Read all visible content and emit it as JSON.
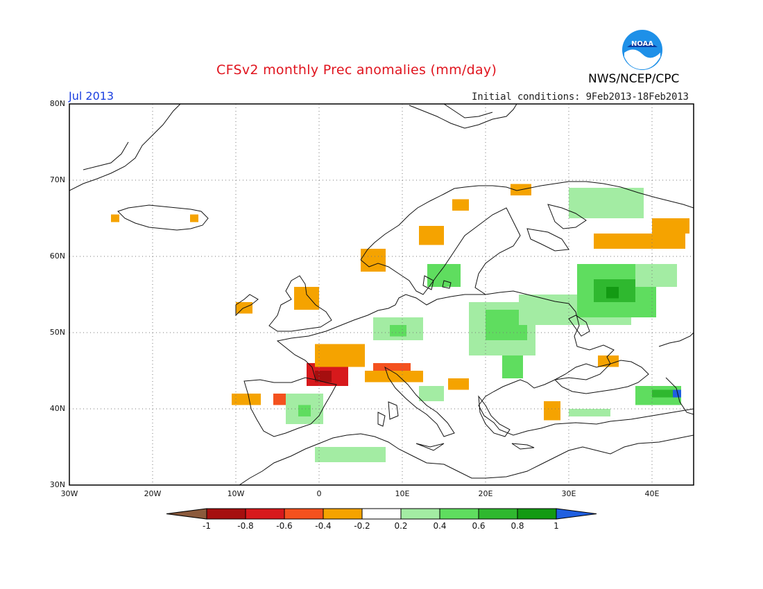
{
  "header": {
    "title": "CFSv2 monthly Prec anomalies (mm/day)",
    "month": "Jul 2013",
    "initial_conditions": "Initial conditions: 9Feb2013-18Feb2013",
    "agency": "NWS/NCEP/CPC",
    "logo_text": "NOAA"
  },
  "axes": {
    "lat_labels": [
      "80N",
      "70N",
      "60N",
      "50N",
      "40N",
      "30N"
    ],
    "lon_labels": [
      "30W",
      "20W",
      "10W",
      "0",
      "10E",
      "20E",
      "30E",
      "40E"
    ]
  },
  "colorbar": {
    "tick_labels": [
      "-1",
      "-0.8",
      "-0.6",
      "-0.4",
      "-0.2",
      "0.2",
      "0.4",
      "0.6",
      "0.8",
      "1"
    ],
    "colors": {
      "lt_-1": "#8b5a3c",
      "-1_-0.8": "#a50f0f",
      "-0.8_-0.6": "#d7191c",
      "-0.6_-0.4": "#f4511e",
      "-0.4_-0.2": "#f5a300",
      "-0.2_0.2": "#ffffff",
      "0.2_0.4": "#a3eca3",
      "0.4_0.6": "#5fdd5f",
      "0.6_0.8": "#2fb82f",
      "0.8_1": "#139a13",
      "gt_1": "#1f5fe0"
    }
  },
  "map_data": {
    "lon_range": [
      -30,
      45
    ],
    "lat_range": [
      30,
      80
    ],
    "grid_step_degrees": 10,
    "anomaly_regions": [
      {
        "lon": [
          -10.5,
          -7
        ],
        "lat": [
          40.5,
          42
        ],
        "value": -0.3
      },
      {
        "lon": [
          -5.5,
          -3
        ],
        "lat": [
          40.5,
          42
        ],
        "value": -0.5
      },
      {
        "lon": [
          -1.5,
          3.5
        ],
        "lat": [
          43,
          46
        ],
        "value": -0.7
      },
      {
        "lon": [
          -0.5,
          1.5
        ],
        "lat": [
          43.5,
          45
        ],
        "value": -0.9
      },
      {
        "lon": [
          -0.5,
          5.5
        ],
        "lat": [
          45.5,
          48.5
        ],
        "value": -0.3
      },
      {
        "lon": [
          6.5,
          11
        ],
        "lat": [
          44.5,
          46
        ],
        "value": -0.6
      },
      {
        "lon": [
          5.5,
          12.5
        ],
        "lat": [
          43.5,
          45
        ],
        "value": -0.3
      },
      {
        "lon": [
          -10,
          -8
        ],
        "lat": [
          52.5,
          54
        ],
        "value": -0.3
      },
      {
        "lon": [
          -3,
          0
        ],
        "lat": [
          53,
          56
        ],
        "value": -0.3
      },
      {
        "lon": [
          5,
          8
        ],
        "lat": [
          58,
          61
        ],
        "value": -0.3
      },
      {
        "lon": [
          12,
          15
        ],
        "lat": [
          61.5,
          64
        ],
        "value": -0.3
      },
      {
        "lon": [
          16,
          18
        ],
        "lat": [
          66,
          67.5
        ],
        "value": -0.3
      },
      {
        "lon": [
          23,
          25.5
        ],
        "lat": [
          68,
          69.5
        ],
        "value": -0.3
      },
      {
        "lon": [
          33,
          44
        ],
        "lat": [
          61,
          63
        ],
        "value": -0.3
      },
      {
        "lon": [
          40,
          44.5
        ],
        "lat": [
          63,
          65
        ],
        "value": -0.3
      },
      {
        "lon": [
          27,
          29
        ],
        "lat": [
          38.5,
          41
        ],
        "value": -0.3
      },
      {
        "lon": [
          15.5,
          18
        ],
        "lat": [
          42.5,
          44
        ],
        "value": -0.3
      },
      {
        "lon": [
          33.5,
          36
        ],
        "lat": [
          45.5,
          47
        ],
        "value": -0.3
      },
      {
        "lon": [
          -25,
          -24
        ],
        "lat": [
          64.5,
          65.5
        ],
        "value": -0.3
      },
      {
        "lon": [
          -15.5,
          -14.5
        ],
        "lat": [
          64.5,
          65.5
        ],
        "value": -0.3
      },
      {
        "lon": [
          -0.5,
          8
        ],
        "lat": [
          33,
          35
        ],
        "value": 0.3
      },
      {
        "lon": [
          -4,
          0.5
        ],
        "lat": [
          38,
          42
        ],
        "value": 0.3
      },
      {
        "lon": [
          -2.5,
          -1
        ],
        "lat": [
          39,
          40.5
        ],
        "value": 0.5
      },
      {
        "lon": [
          6.5,
          12.5
        ],
        "lat": [
          49,
          52
        ],
        "value": 0.3
      },
      {
        "lon": [
          8.5,
          10.5
        ],
        "lat": [
          49.5,
          51
        ],
        "value": 0.5
      },
      {
        "lon": [
          18,
          26
        ],
        "lat": [
          47,
          54
        ],
        "value": 0.3
      },
      {
        "lon": [
          20,
          25
        ],
        "lat": [
          49,
          53
        ],
        "value": 0.5
      },
      {
        "lon": [
          22,
          24.5
        ],
        "lat": [
          44,
          47
        ],
        "value": 0.4
      },
      {
        "lon": [
          24,
          37.5
        ],
        "lat": [
          51,
          55
        ],
        "value": 0.3
      },
      {
        "lon": [
          31,
          40.5
        ],
        "lat": [
          52,
          59
        ],
        "value": 0.45
      },
      {
        "lon": [
          33,
          38
        ],
        "lat": [
          54,
          57
        ],
        "value": 0.65
      },
      {
        "lon": [
          34.5,
          36
        ],
        "lat": [
          54.5,
          56
        ],
        "value": 0.85
      },
      {
        "lon": [
          38,
          43
        ],
        "lat": [
          56,
          59
        ],
        "value": 0.3
      },
      {
        "lon": [
          13,
          17
        ],
        "lat": [
          56,
          59
        ],
        "value": 0.4
      },
      {
        "lon": [
          30,
          39
        ],
        "lat": [
          65,
          69
        ],
        "value": 0.3
      },
      {
        "lon": [
          38,
          43.5
        ],
        "lat": [
          40.5,
          43
        ],
        "value": 0.4
      },
      {
        "lon": [
          40,
          43
        ],
        "lat": [
          41.5,
          42.5
        ],
        "value": 0.7
      },
      {
        "lon": [
          42.5,
          43.5
        ],
        "lat": [
          41.5,
          42.5
        ],
        "value": 1.2
      },
      {
        "lon": [
          30,
          35
        ],
        "lat": [
          39,
          40
        ],
        "value": 0.3
      },
      {
        "lon": [
          12,
          15
        ],
        "lat": [
          41,
          43
        ],
        "value": 0.3
      }
    ]
  }
}
